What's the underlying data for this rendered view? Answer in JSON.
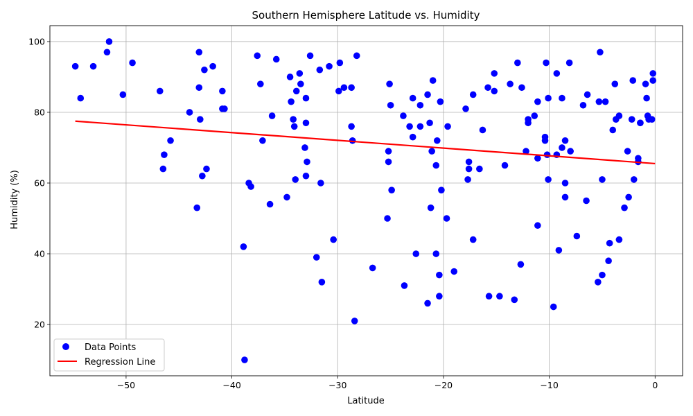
{
  "chart_data": {
    "type": "scatter",
    "title": "Southern Hemisphere Latitude vs. Humidity",
    "xlabel": "Latitude",
    "ylabel": "Humidity (%)",
    "xlim": [
      -57.2,
      2.6
    ],
    "ylim": [
      5.5,
      104.5
    ],
    "xticks": [
      -50,
      -40,
      -30,
      -20,
      -10,
      0
    ],
    "yticks": [
      20,
      40,
      60,
      80,
      100
    ],
    "grid": true,
    "legend_position": "lower-left",
    "colors": {
      "points": "#0000ff",
      "line": "#ff0000",
      "grid": "#b0b0b0"
    },
    "series": [
      {
        "name": "Data Points",
        "points": [
          [
            -54.8,
            93
          ],
          [
            -54.3,
            84
          ],
          [
            -53.1,
            93
          ],
          [
            -51.8,
            97
          ],
          [
            -51.6,
            100
          ],
          [
            -50.3,
            85
          ],
          [
            -49.4,
            94
          ],
          [
            -46.8,
            86
          ],
          [
            -46.5,
            64
          ],
          [
            -46.4,
            68
          ],
          [
            -45.8,
            72
          ],
          [
            -44,
            80
          ],
          [
            -43.3,
            53
          ],
          [
            -43.1,
            97
          ],
          [
            -43.1,
            87
          ],
          [
            -43,
            78
          ],
          [
            -42.8,
            62
          ],
          [
            -42.6,
            92
          ],
          [
            -42.4,
            64
          ],
          [
            -41.8,
            93
          ],
          [
            -40.9,
            81
          ],
          [
            -40.9,
            86
          ],
          [
            -40.7,
            81
          ],
          [
            -38.9,
            42
          ],
          [
            -38.8,
            10
          ],
          [
            -38.4,
            60
          ],
          [
            -38.2,
            59
          ],
          [
            -37.6,
            96
          ],
          [
            -37.3,
            88
          ],
          [
            -37.1,
            72
          ],
          [
            -36.4,
            54
          ],
          [
            -36.2,
            79
          ],
          [
            -35.8,
            95
          ],
          [
            -34.8,
            56
          ],
          [
            -34.5,
            90
          ],
          [
            -34.4,
            83
          ],
          [
            -34.2,
            78
          ],
          [
            -34.1,
            76
          ],
          [
            -34,
            61
          ],
          [
            -33.9,
            86
          ],
          [
            -33.6,
            91
          ],
          [
            -33.5,
            88
          ],
          [
            -33.1,
            70
          ],
          [
            -33,
            84
          ],
          [
            -33,
            77
          ],
          [
            -32.9,
            66
          ],
          [
            -33,
            62
          ],
          [
            -32.6,
            96
          ],
          [
            -32,
            39
          ],
          [
            -31.7,
            92
          ],
          [
            -31.6,
            60
          ],
          [
            -31.5,
            32
          ],
          [
            -30.8,
            93
          ],
          [
            -30.4,
            44
          ],
          [
            -29.9,
            86
          ],
          [
            -29.8,
            94
          ],
          [
            -29.4,
            87
          ],
          [
            -28.7,
            87
          ],
          [
            -28.7,
            76
          ],
          [
            -28.6,
            72
          ],
          [
            -28.4,
            21
          ],
          [
            -28.2,
            96
          ],
          [
            -26.7,
            36
          ],
          [
            -25.3,
            50
          ],
          [
            -25.2,
            69
          ],
          [
            -25.2,
            66
          ],
          [
            -25.1,
            88
          ],
          [
            -25,
            82
          ],
          [
            -24.9,
            58
          ],
          [
            -23.8,
            79
          ],
          [
            -23.7,
            31
          ],
          [
            -23.2,
            76
          ],
          [
            -22.9,
            84
          ],
          [
            -22.9,
            73
          ],
          [
            -22.6,
            40
          ],
          [
            -22.2,
            82
          ],
          [
            -22.2,
            76
          ],
          [
            -21.5,
            85
          ],
          [
            -21.5,
            26
          ],
          [
            -21.3,
            77
          ],
          [
            -21.2,
            53
          ],
          [
            -21.1,
            69
          ],
          [
            -21,
            89
          ],
          [
            -20.7,
            65
          ],
          [
            -20.7,
            40
          ],
          [
            -20.6,
            72
          ],
          [
            -20.4,
            28
          ],
          [
            -20.4,
            34
          ],
          [
            -20.3,
            83
          ],
          [
            -20.2,
            58
          ],
          [
            -19.7,
            50
          ],
          [
            -19.6,
            76
          ],
          [
            -19,
            35
          ],
          [
            -17.9,
            81
          ],
          [
            -17.7,
            61
          ],
          [
            -17.6,
            66
          ],
          [
            -17.6,
            64
          ],
          [
            -17.2,
            85
          ],
          [
            -17.2,
            44
          ],
          [
            -16.6,
            64
          ],
          [
            -16.3,
            75
          ],
          [
            -15.8,
            87
          ],
          [
            -15.7,
            28
          ],
          [
            -15.2,
            91
          ],
          [
            -15.2,
            86
          ],
          [
            -14.7,
            28
          ],
          [
            -14.2,
            65
          ],
          [
            -13.7,
            88
          ],
          [
            -13.3,
            27
          ],
          [
            -13,
            94
          ],
          [
            -12.7,
            37
          ],
          [
            -12.6,
            87
          ],
          [
            -12.2,
            69
          ],
          [
            -12,
            78
          ],
          [
            -12,
            77
          ],
          [
            -11.4,
            79
          ],
          [
            -11.1,
            83
          ],
          [
            -11.1,
            67
          ],
          [
            -11.1,
            48
          ],
          [
            -10.4,
            73
          ],
          [
            -10.4,
            72
          ],
          [
            -10.3,
            94
          ],
          [
            -10.2,
            68
          ],
          [
            -10.1,
            84
          ],
          [
            -10.1,
            61
          ],
          [
            -9.6,
            25
          ],
          [
            -9.3,
            68
          ],
          [
            -9.3,
            91
          ],
          [
            -9.1,
            41
          ],
          [
            -8.8,
            84
          ],
          [
            -8.8,
            70
          ],
          [
            -8.5,
            72
          ],
          [
            -8.5,
            60
          ],
          [
            -8.5,
            56
          ],
          [
            -8.1,
            94
          ],
          [
            -8,
            69
          ],
          [
            -7.4,
            45
          ],
          [
            -6.8,
            82
          ],
          [
            -6.4,
            85
          ],
          [
            -6.5,
            55
          ],
          [
            -5.4,
            32
          ],
          [
            -5.3,
            83
          ],
          [
            -5.2,
            97
          ],
          [
            -5,
            61
          ],
          [
            -5,
            34
          ],
          [
            -4.7,
            83
          ],
          [
            -4.4,
            38
          ],
          [
            -4.3,
            43
          ],
          [
            -4,
            75
          ],
          [
            -3.8,
            88
          ],
          [
            -3.7,
            78
          ],
          [
            -3.4,
            79
          ],
          [
            -3.4,
            44
          ],
          [
            -2.9,
            53
          ],
          [
            -2.6,
            69
          ],
          [
            -2.5,
            56
          ],
          [
            -2.2,
            78
          ],
          [
            -2.1,
            89
          ],
          [
            -2,
            61
          ],
          [
            -1.6,
            66
          ],
          [
            -1.6,
            67
          ],
          [
            -1.4,
            77
          ],
          [
            -1.4,
            77
          ],
          [
            -0.9,
            88
          ],
          [
            -0.8,
            84
          ],
          [
            -0.7,
            79
          ],
          [
            -0.6,
            78
          ],
          [
            -0.3,
            78
          ],
          [
            -0.2,
            91
          ],
          [
            -0.2,
            89
          ]
        ]
      },
      {
        "name": "Regression Line",
        "line": [
          [
            -54.8,
            77.5
          ],
          [
            0,
            65.5
          ]
        ]
      }
    ]
  }
}
